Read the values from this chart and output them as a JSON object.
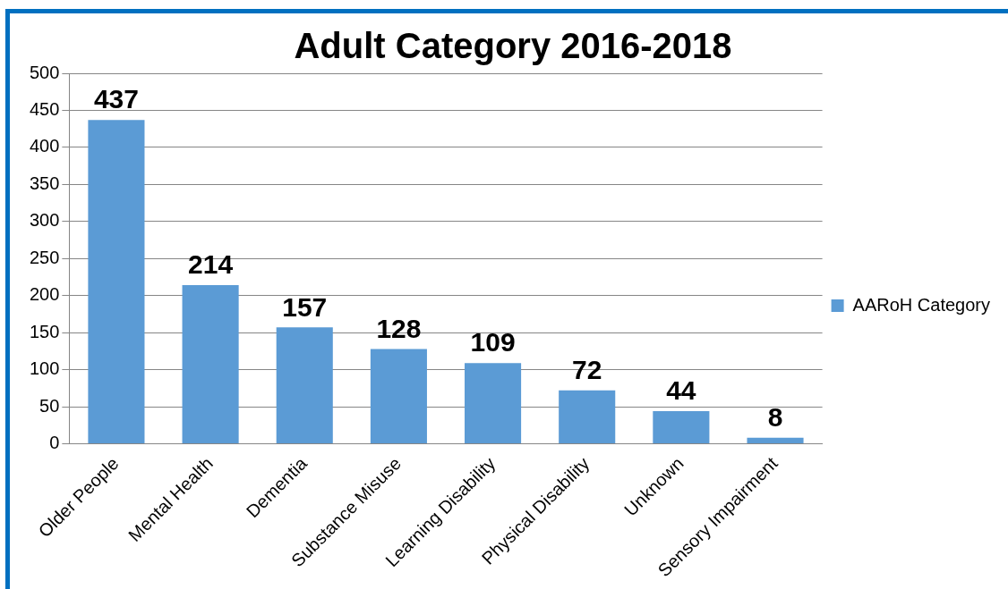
{
  "chart_data": {
    "type": "bar",
    "title": "Adult Category 2016-2018",
    "categories": [
      "Older People",
      "Mental Health",
      "Dementia",
      "Substance Misuse",
      "Learning Disability",
      "Physical Disability",
      "Unknown",
      "Sensory Impairment"
    ],
    "series": [
      {
        "name": "AARoH Category",
        "color": "#5b9bd5",
        "values": [
          437,
          214,
          157,
          128,
          109,
          72,
          44,
          8
        ]
      }
    ],
    "ylim": [
      0,
      500
    ],
    "yticks": [
      0,
      50,
      100,
      150,
      200,
      250,
      300,
      350,
      400,
      450,
      500
    ],
    "grid": "y",
    "legend": "right",
    "data_labels": true
  }
}
